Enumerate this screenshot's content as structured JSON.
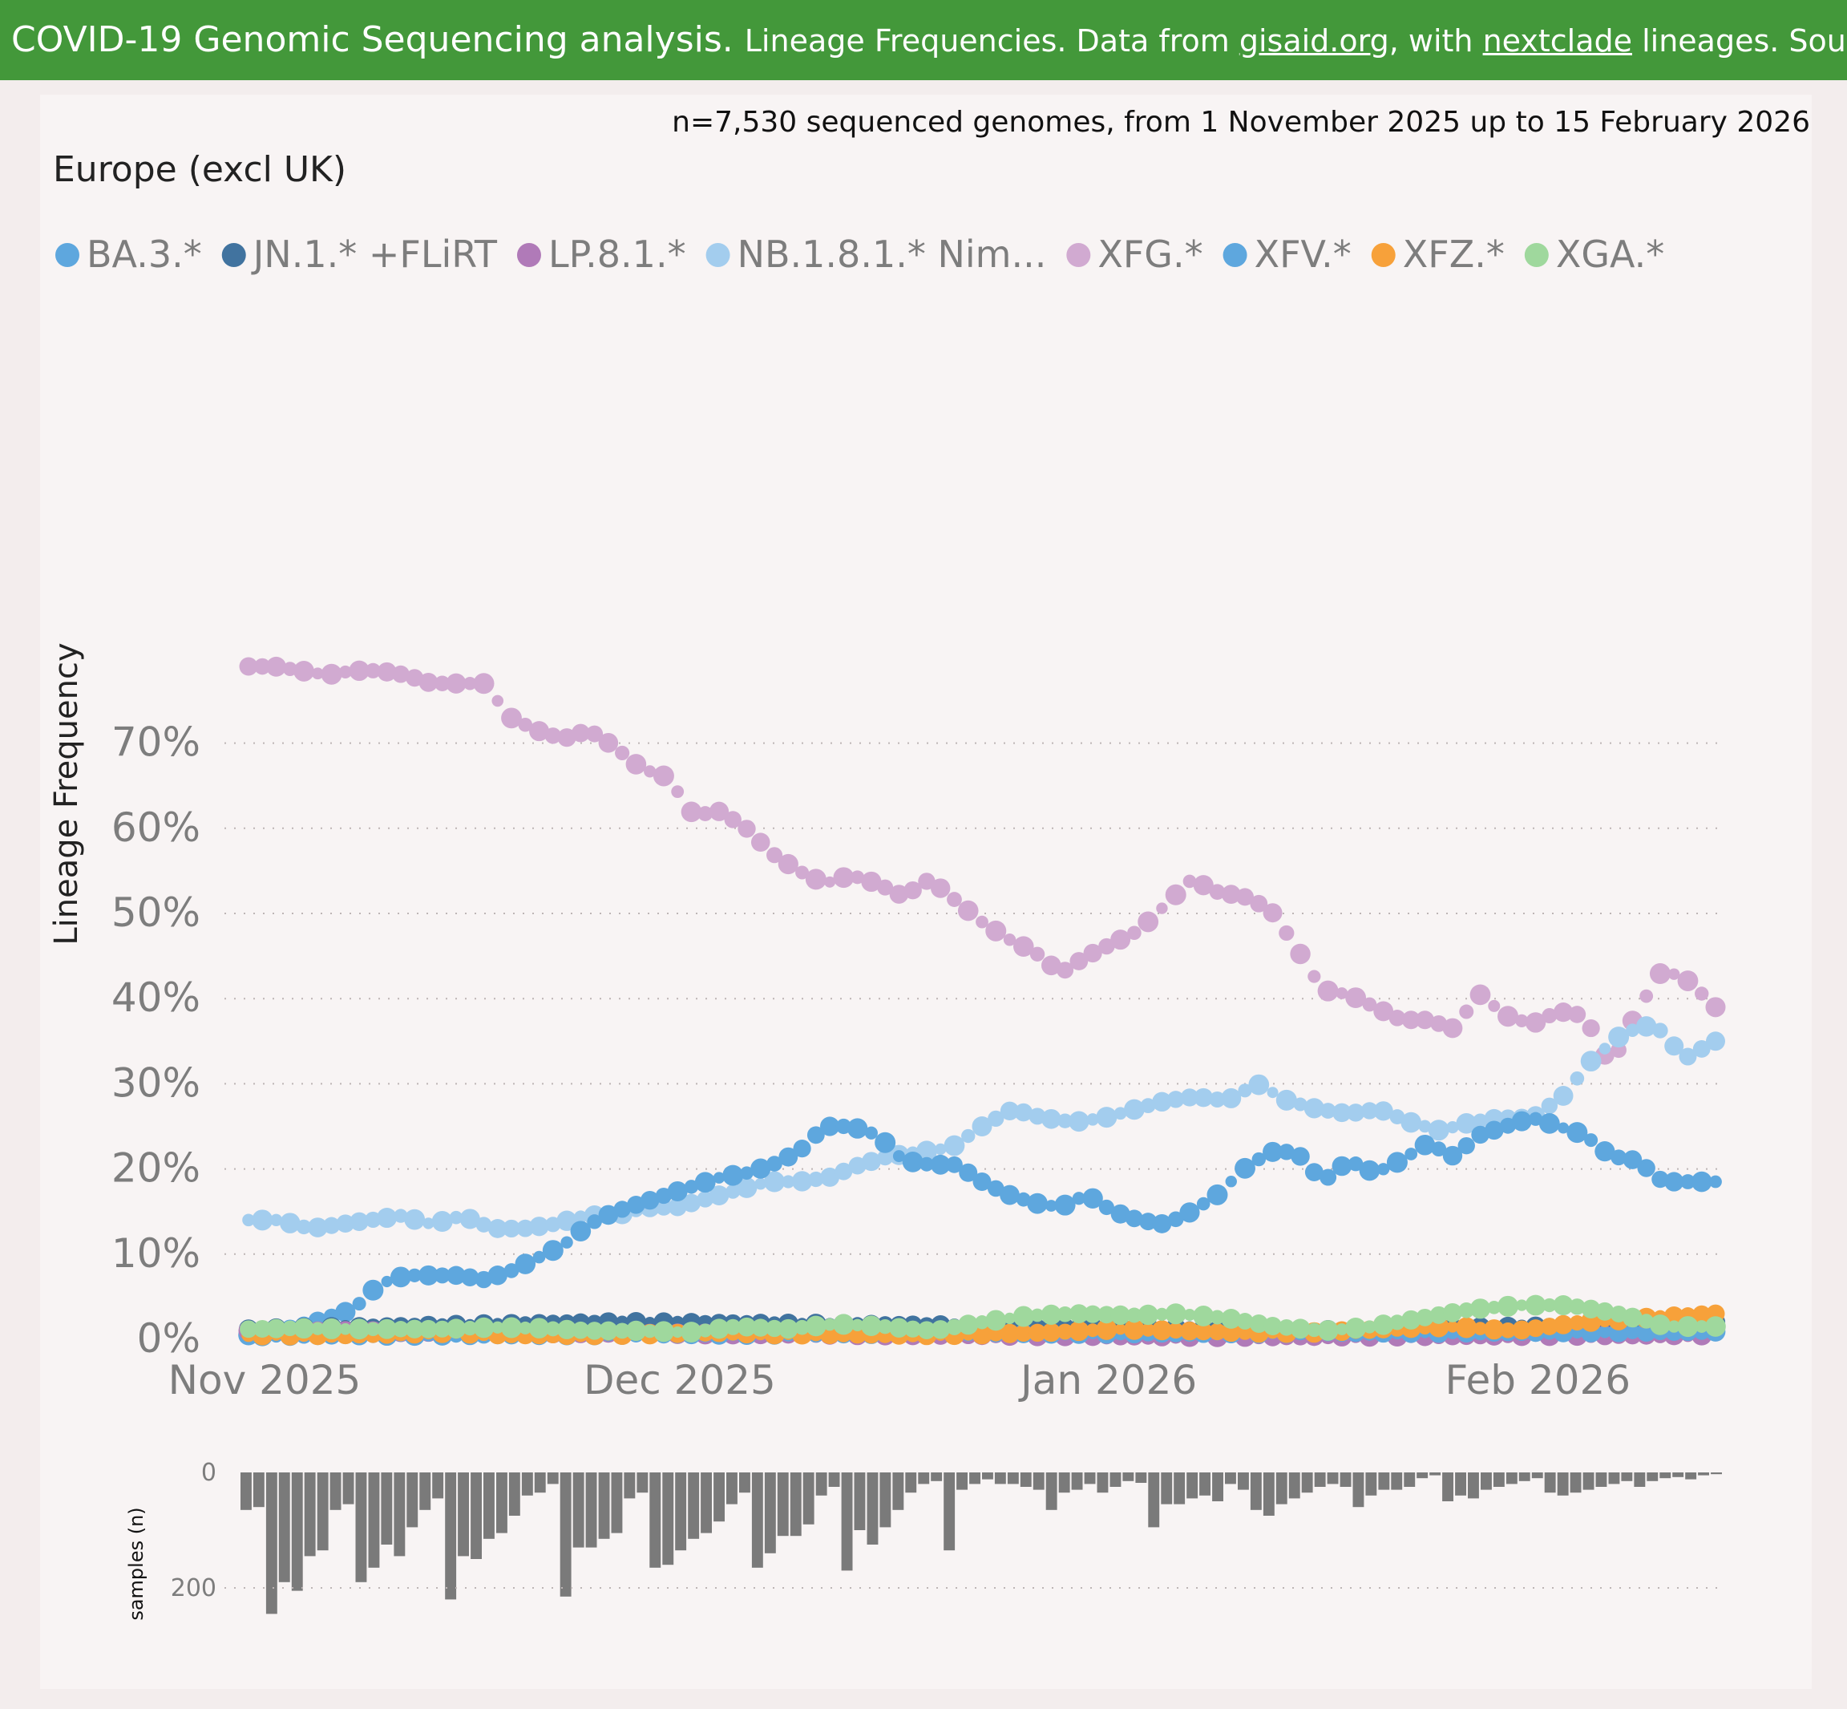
{
  "header": {
    "title": "COVID-19 Genomic Sequencing analysis.",
    "subtitle_prefix": "Lineage Frequencies. Data from ",
    "link1": "gisaid.org",
    "mid": ", with ",
    "link2": "nextclade",
    "suffix": " lineages. Source"
  },
  "chart_data": {
    "type": "scatter",
    "title": "Europe (excl UK)",
    "subtitle": "n=7,530 sequenced genomes, from 1 November 2025 up to 15 February 2026",
    "xlabel": "",
    "ylabel": "Lineage Frequency",
    "x_start": "2025-11-01",
    "x_end": "2026-02-15",
    "ylim": [
      0,
      80
    ],
    "y_ticks": [
      0,
      10,
      20,
      30,
      40,
      50,
      60,
      70
    ],
    "y_tick_labels": [
      "0%",
      "10%",
      "20%",
      "30%",
      "40%",
      "50%",
      "60%",
      "70%"
    ],
    "x_tick_days": [
      0,
      30,
      61,
      92
    ],
    "x_tick_labels": [
      "Nov 2025",
      "Dec 2025",
      "Jan 2026",
      "Feb 2026"
    ],
    "legend_position": "top-left",
    "series": [
      {
        "name": "BA.3.*",
        "color": "#5ea7de",
        "values": [
          0.4,
          0.9
        ]
      },
      {
        "name": "JN.1.* +FLiRT",
        "color": "#41739f",
        "values": [
          1.2,
          2.0,
          1.6,
          1.0,
          2.0
        ]
      },
      {
        "name": "LP.8.1.*",
        "color": "#b07ab8",
        "values": [
          1.0,
          0.6,
          0.3,
          0.5
        ]
      },
      {
        "name": "NB.1.8.1.* Nim...",
        "color": "#a3cdee",
        "values": [
          14,
          14,
          13,
          13.5,
          14,
          14.5,
          13.5,
          14.5,
          13,
          13,
          13.5,
          14.5,
          14.5,
          15.5,
          15.5,
          16.5,
          17.5,
          18.5,
          18.5,
          19,
          20.5,
          21.5,
          22,
          22.5,
          25,
          27,
          26,
          25.5,
          26,
          27,
          28,
          28.5,
          28,
          30,
          28,
          27,
          26.5,
          27,
          25.5,
          24.5,
          25.5,
          26,
          26,
          28.5,
          33,
          36,
          37,
          33,
          35
        ]
      },
      {
        "name": "XFG.*",
        "color": "#d1aad1",
        "values": [
          79,
          79,
          78.5,
          78,
          78.5,
          78.5,
          78,
          77,
          77,
          77,
          73,
          71.5,
          70.5,
          71.5,
          69.5,
          67,
          66,
          61.5,
          62,
          60,
          57,
          55,
          53.5,
          54.5,
          53.5,
          52,
          54,
          51.5,
          49,
          47,
          45.5,
          43,
          45,
          46.5,
          48,
          51,
          54,
          52.5,
          52,
          50.5,
          46,
          41,
          40.5,
          39,
          37.5,
          37.5,
          36.5,
          40.5,
          38,
          37,
          38.5,
          38,
          32,
          38.5,
          43.5,
          42,
          39
        ]
      },
      {
        "name": "XFV.*",
        "color": "#5ea7de",
        "values": [
          0.5,
          1.0,
          1.5,
          2.5,
          3.5,
          6.5,
          7.5,
          7.5,
          7.5,
          7,
          8,
          9.5,
          11,
          13.5,
          15,
          16,
          17,
          18,
          19,
          19.5,
          20.5,
          22,
          25,
          25,
          24,
          21,
          20.5,
          20.5,
          18.5,
          17,
          16,
          15.5,
          17,
          15,
          14,
          13.5,
          15,
          17,
          20,
          22,
          22,
          18.5,
          21,
          19.5,
          21,
          23,
          21.5,
          24,
          25,
          26,
          25,
          24,
          21.5,
          21,
          18.5,
          18.5,
          18.5
        ]
      },
      {
        "name": "XFZ.*",
        "color": "#f7a13a",
        "values": [
          0.5,
          0.5,
          0.6,
          0.8,
          0.5,
          0.5,
          0.6,
          0.8,
          0.6,
          0.6,
          0.5,
          0.6,
          0.8,
          1.2,
          1.0,
          0.8,
          0.8,
          1.2,
          1.5,
          1.0,
          2.0,
          2.5,
          3.0
        ]
      },
      {
        "name": "XGA.*",
        "color": "#9fd89d",
        "values": [
          1.2,
          1.3,
          1.2,
          1.2,
          1.2,
          1.4,
          1.3,
          1.0,
          1.0,
          0.8,
          1.5,
          1.2,
          1.8,
          1.5,
          1.0,
          2.0,
          2.8,
          3.0,
          2.8,
          3.0,
          2.5,
          1.5,
          1.0,
          1.5,
          2.5,
          3.5,
          4.0,
          4.0,
          3.0,
          1.5,
          1.5
        ]
      }
    ],
    "samples": {
      "label": "samples (n)",
      "tick_labels": [
        "0",
        "200"
      ],
      "ylim": [
        0,
        250
      ],
      "values": [
        65,
        60,
        245,
        190,
        205,
        145,
        135,
        65,
        55,
        190,
        165,
        125,
        145,
        95,
        65,
        45,
        220,
        145,
        150,
        115,
        105,
        75,
        40,
        35,
        20,
        215,
        130,
        130,
        115,
        105,
        45,
        35,
        165,
        160,
        135,
        115,
        105,
        85,
        55,
        35,
        165,
        140,
        110,
        110,
        90,
        40,
        25,
        170,
        100,
        125,
        95,
        65,
        35,
        20,
        15,
        135,
        30,
        20,
        12,
        20,
        20,
        25,
        30,
        65,
        35,
        30,
        20,
        35,
        25,
        15,
        18,
        95,
        55,
        55,
        45,
        40,
        50,
        20,
        30,
        65,
        75,
        55,
        45,
        35,
        25,
        20,
        25,
        60,
        40,
        30,
        30,
        25,
        10,
        5,
        50,
        40,
        45,
        30,
        25,
        20,
        15,
        10,
        35,
        40,
        35,
        30,
        25,
        20,
        15,
        25,
        15,
        10,
        8,
        12,
        5,
        3
      ]
    }
  }
}
